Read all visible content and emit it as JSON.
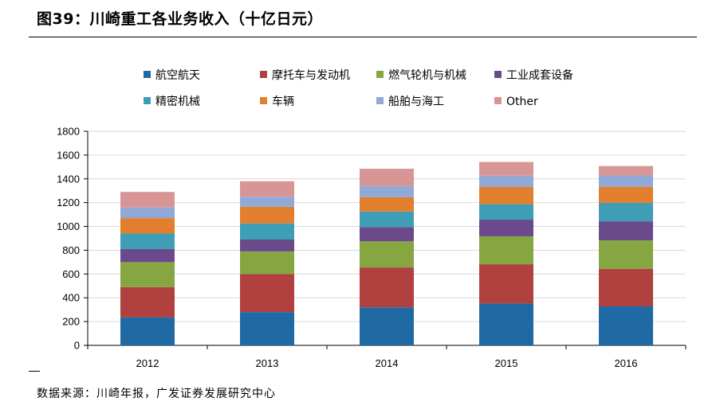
{
  "figure": {
    "title": "图39：川崎重工各业务收入（十亿日元）",
    "source": "数据来源：川崎年报，广发证券发展研究中心"
  },
  "chart_data": {
    "type": "bar",
    "stacked": true,
    "categories": [
      "2012",
      "2013",
      "2014",
      "2015",
      "2016"
    ],
    "ylim": [
      0,
      1800
    ],
    "yticks": [
      0,
      200,
      400,
      600,
      800,
      1000,
      1200,
      1400,
      1600,
      1800
    ],
    "grid": true,
    "legend_position": "top",
    "series": [
      {
        "name": "航空航天",
        "color": "#1f6aa5",
        "values": [
          235,
          280,
          320,
          352,
          328
        ]
      },
      {
        "name": "摩托车与发动机",
        "color": "#b0413e",
        "values": [
          255,
          320,
          335,
          330,
          315
        ]
      },
      {
        "name": "燃气轮机与机械",
        "color": "#86a642",
        "values": [
          210,
          190,
          220,
          235,
          240
        ]
      },
      {
        "name": "工业成套设备",
        "color": "#6b4a8c",
        "values": [
          110,
          100,
          120,
          140,
          160
        ]
      },
      {
        "name": "精密机械",
        "color": "#3e9eb5",
        "values": [
          130,
          135,
          130,
          130,
          155
        ]
      },
      {
        "name": "车辆",
        "color": "#e27f2e",
        "values": [
          130,
          140,
          120,
          145,
          135
        ]
      },
      {
        "name": "船舶与海工",
        "color": "#92a9d6",
        "values": [
          90,
          85,
          95,
          95,
          95
        ]
      },
      {
        "name": "Other",
        "color": "#d89595",
        "values": [
          130,
          130,
          145,
          115,
          80
        ]
      }
    ]
  }
}
